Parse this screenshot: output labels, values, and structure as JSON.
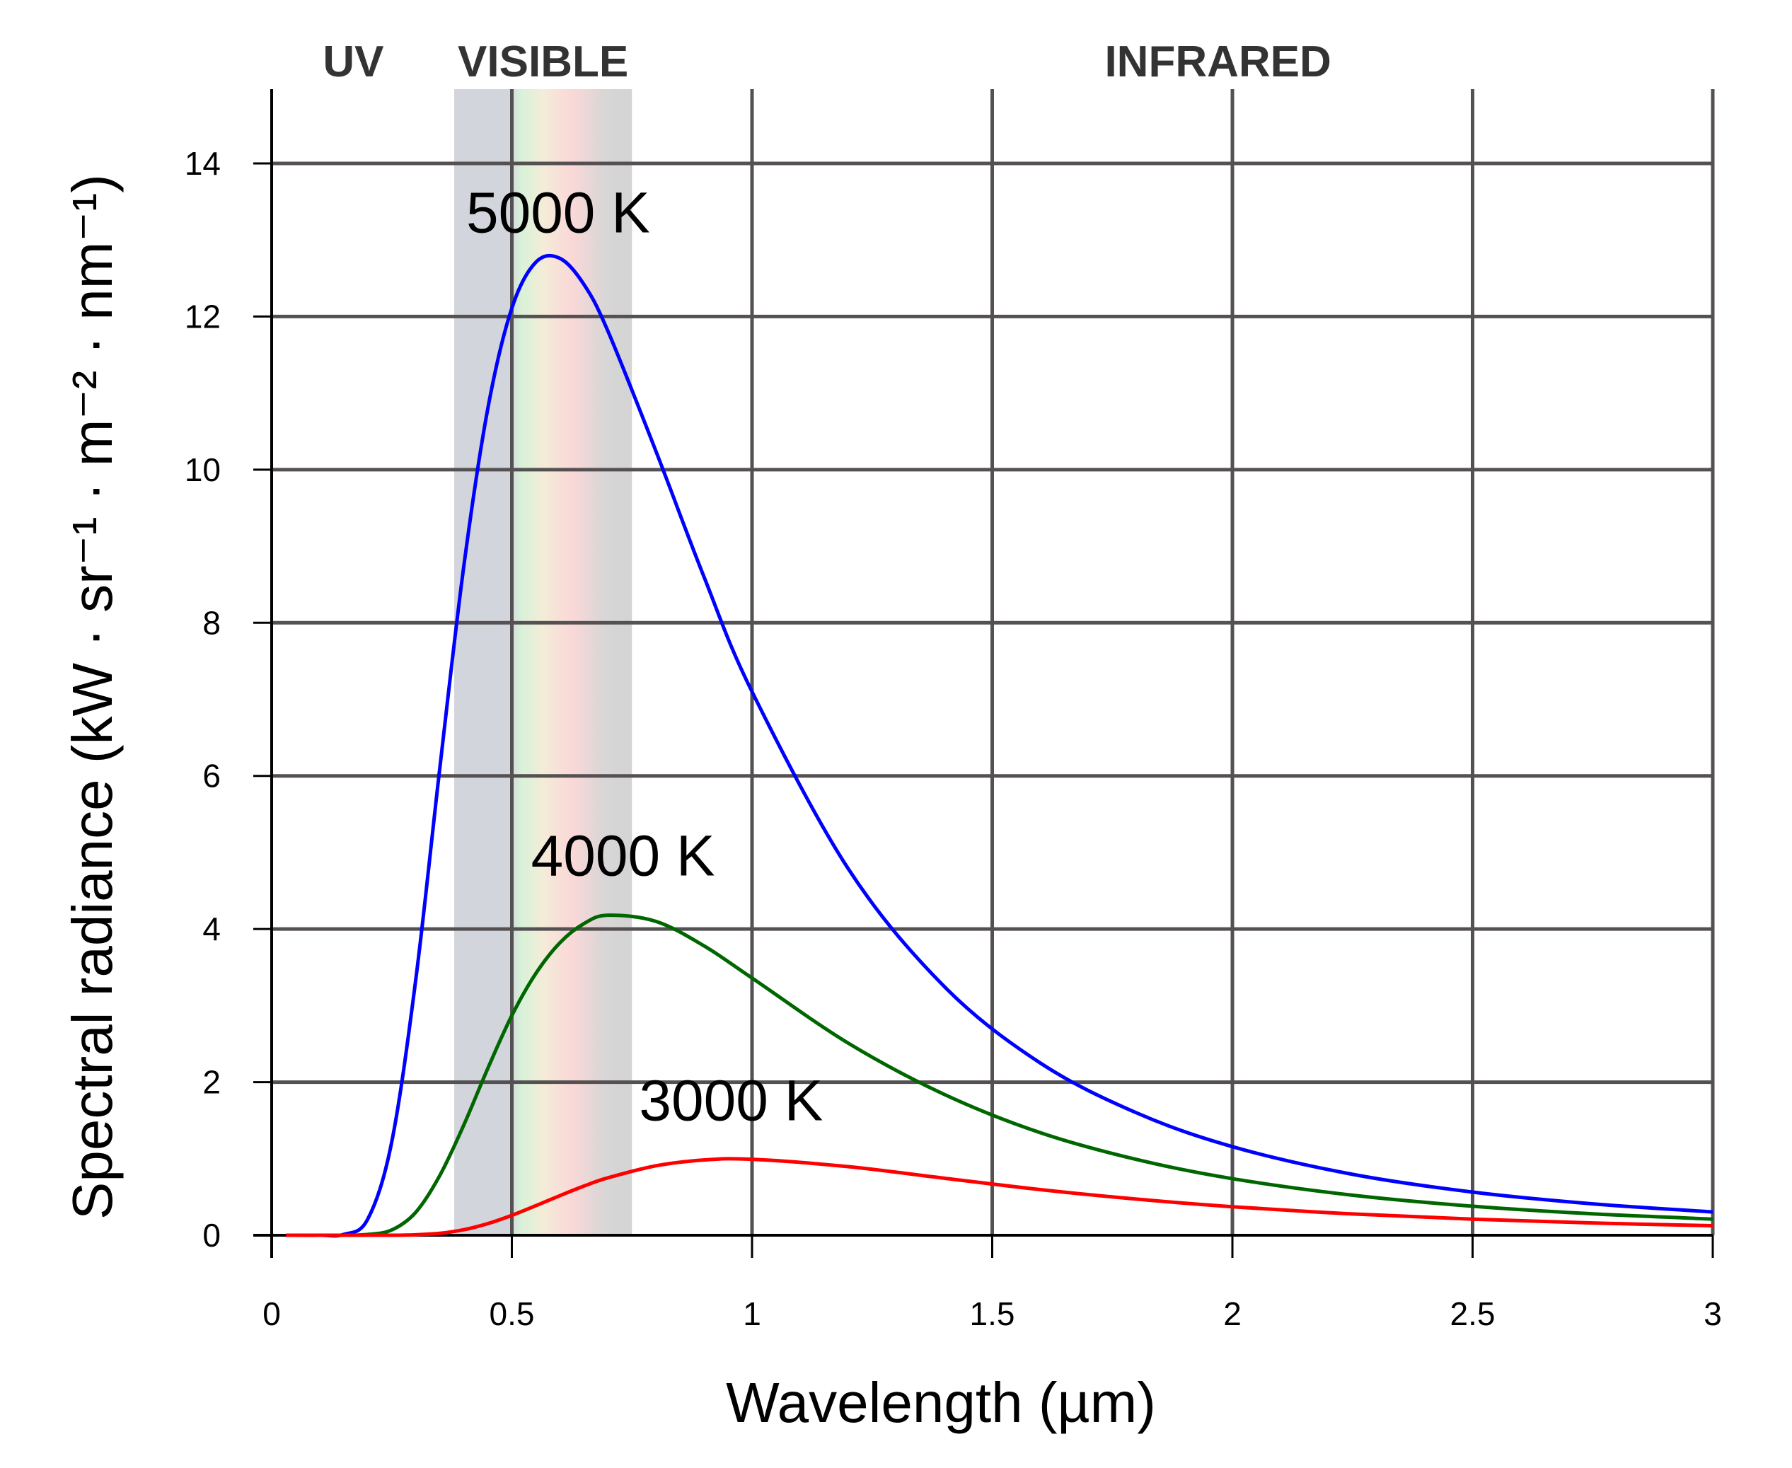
{
  "chart_data": {
    "type": "line",
    "title": "",
    "xlabel": "Wavelength (µm)",
    "ylabel": "Spectral radiance (kW · sr⁻¹ · m⁻² · nm⁻¹)",
    "xlim": [
      0,
      3
    ],
    "ylim": [
      0,
      14
    ],
    "grid": true,
    "xticks": [
      0,
      0.5,
      1,
      1.5,
      2,
      2.5,
      3
    ],
    "xtick_labels": [
      "0",
      "0.5",
      "1",
      "1.5",
      "2",
      "2.5",
      "3"
    ],
    "yticks": [
      0,
      2,
      4,
      6,
      8,
      10,
      12,
      14
    ],
    "ytick_labels": [
      "0",
      "2",
      "4",
      "6",
      "8",
      "10",
      "12",
      "14"
    ],
    "regions": [
      {
        "label": "UV",
        "label_x": 0.17
      },
      {
        "label": "VISIBLE",
        "range": [
          0.38,
          0.75
        ],
        "label_x": 0.565
      },
      {
        "label": "INFRARED",
        "label_x": 1.97
      }
    ],
    "x": [
      0.03,
      0.1,
      0.15,
      0.2,
      0.25,
      0.3,
      0.35,
      0.4,
      0.45,
      0.5,
      0.55,
      0.6,
      0.65,
      0.7,
      0.8,
      0.9,
      1.0,
      1.2,
      1.4,
      1.6,
      1.8,
      2.0,
      2.25,
      2.5,
      2.75,
      3.0
    ],
    "series": [
      {
        "name": "5000 K",
        "color": "#0000ff",
        "label_pos": [
          0.405,
          13.1
        ],
        "values": [
          0,
          0,
          0.01,
          0.21,
          1.22,
          3.34,
          6.1,
          8.74,
          10.8,
          12.11,
          12.71,
          12.76,
          12.42,
          11.81,
          10.24,
          8.6,
          7.1,
          4.79,
          3.25,
          2.25,
          1.6,
          1.157,
          0.796,
          0.564,
          0.41,
          0.304
        ]
      },
      {
        "name": "4000 K",
        "color": "#006600",
        "label_pos": [
          0.54,
          4.7
        ],
        "values": [
          0,
          0,
          0,
          0.01,
          0.069,
          0.3,
          0.78,
          1.44,
          2.18,
          2.87,
          3.42,
          3.82,
          4.07,
          4.18,
          4.1,
          3.78,
          3.36,
          2.51,
          1.84,
          1.34,
          0.99,
          0.739,
          0.523,
          0.379,
          0.28,
          0.211
        ]
      },
      {
        "name": "3000 K",
        "color": "#ff0000",
        "label_pos": [
          0.765,
          1.5
        ],
        "values": [
          0,
          0,
          0,
          0,
          0,
          0.006,
          0.025,
          0.072,
          0.152,
          0.26,
          0.386,
          0.517,
          0.642,
          0.75,
          0.907,
          0.983,
          0.992,
          0.896,
          0.745,
          0.596,
          0.472,
          0.372,
          0.278,
          0.21,
          0.16,
          0.124
        ]
      }
    ]
  }
}
